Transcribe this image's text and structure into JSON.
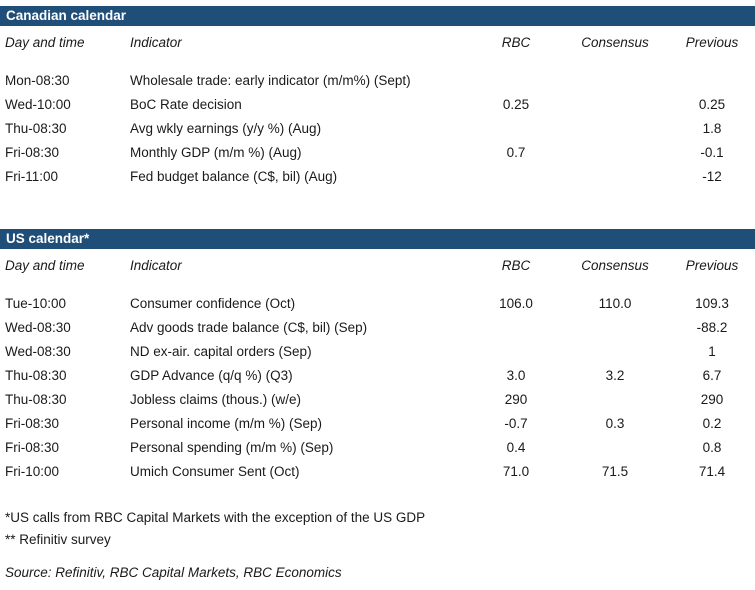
{
  "colors": {
    "header_bar": "#1F4E79",
    "header_bar_text": "#FFFFFF",
    "body_text": "#1A1A1A"
  },
  "columns": [
    "Day and time",
    "Indicator",
    "RBC",
    "Consensus",
    "Previous"
  ],
  "sections": [
    {
      "title": "Canadian calendar",
      "rows": [
        {
          "day_time": "Mon-08:30",
          "indicator": "Wholesale trade: early indicator (m/m%) (Sept)",
          "rbc": "",
          "consensus": "",
          "previous": ""
        },
        {
          "day_time": "Wed-10:00",
          "indicator": "BoC Rate decision",
          "rbc": "0.25",
          "consensus": "",
          "previous": "0.25"
        },
        {
          "day_time": "Thu-08:30",
          "indicator": "Avg wkly earnings (y/y %) (Aug)",
          "rbc": "",
          "consensus": "",
          "previous": "1.8"
        },
        {
          "day_time": "Fri-08:30",
          "indicator": "Monthly GDP (m/m %) (Aug)",
          "rbc": "0.7",
          "consensus": "",
          "previous": "-0.1"
        },
        {
          "day_time": "Fri-11:00",
          "indicator": "Fed budget balance (C$, bil) (Aug)",
          "rbc": "",
          "consensus": "",
          "previous": "-12"
        }
      ]
    },
    {
      "title": "US calendar*",
      "rows": [
        {
          "day_time": "Tue-10:00",
          "indicator": "Consumer confidence (Oct)",
          "rbc": "106.0",
          "consensus": "110.0",
          "previous": "109.3"
        },
        {
          "day_time": "Wed-08:30",
          "indicator": "Adv goods trade balance (C$, bil) (Sep)",
          "rbc": "",
          "consensus": "",
          "previous": "-88.2"
        },
        {
          "day_time": "Wed-08:30",
          "indicator": "ND ex-air. capital orders (Sep)",
          "rbc": "",
          "consensus": "",
          "previous": "1"
        },
        {
          "day_time": "Thu-08:30",
          "indicator": "GDP Advance (q/q %) (Q3)",
          "rbc": "3.0",
          "consensus": "3.2",
          "previous": "6.7"
        },
        {
          "day_time": "Thu-08:30",
          "indicator": "Jobless claims (thous.) (w/e)",
          "rbc": "290",
          "consensus": "",
          "previous": "290"
        },
        {
          "day_time": "Fri-08:30",
          "indicator": "Personal income (m/m %) (Sep)",
          "rbc": "-0.7",
          "consensus": "0.3",
          "previous": "0.2"
        },
        {
          "day_time": "Fri-08:30",
          "indicator": "Personal spending (m/m %) (Sep)",
          "rbc": "0.4",
          "consensus": "",
          "previous": "0.8"
        },
        {
          "day_time": "Fri-10:00",
          "indicator": "Umich Consumer Sent (Oct)",
          "rbc": "71.0",
          "consensus": "71.5",
          "previous": "71.4"
        }
      ]
    }
  ],
  "footnotes": {
    "note1": "*US calls from RBC Capital Markets with the exception of the US GDP",
    "note2": "** Refinitiv survey",
    "source": "Source: Refinitiv, RBC Capital Markets, RBC Economics"
  }
}
